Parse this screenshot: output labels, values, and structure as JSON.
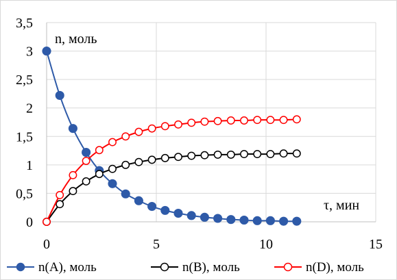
{
  "chart_data": {
    "type": "line",
    "x": [
      0,
      0.6,
      1.2,
      1.8,
      2.4,
      3.0,
      3.6,
      4.2,
      4.8,
      5.4,
      6.0,
      6.6,
      7.2,
      7.8,
      8.4,
      9.0,
      9.6,
      10.2,
      10.8,
      11.4
    ],
    "series": [
      {
        "name": "n(A), моль",
        "color": "#2e5aa8",
        "marker": "filled-circle",
        "values": [
          3.0,
          2.22,
          1.64,
          1.22,
          0.9,
          0.67,
          0.49,
          0.37,
          0.27,
          0.2,
          0.15,
          0.11,
          0.08,
          0.06,
          0.04,
          0.03,
          0.02,
          0.02,
          0.01,
          0.01
        ]
      },
      {
        "name": "n(B), моль",
        "color": "#000000",
        "marker": "open-circle",
        "values": [
          0.0,
          0.31,
          0.54,
          0.71,
          0.84,
          0.93,
          1.0,
          1.05,
          1.09,
          1.12,
          1.14,
          1.16,
          1.17,
          1.18,
          1.18,
          1.19,
          1.19,
          1.19,
          1.2,
          1.2
        ]
      },
      {
        "name": "n(D), моль",
        "color": "#ff0000",
        "marker": "open-circle",
        "values": [
          0.0,
          0.47,
          0.82,
          1.07,
          1.26,
          1.4,
          1.5,
          1.58,
          1.64,
          1.68,
          1.71,
          1.74,
          1.76,
          1.77,
          1.78,
          1.78,
          1.79,
          1.79,
          1.79,
          1.8
        ]
      }
    ],
    "xlim": [
      0,
      15
    ],
    "ylim": [
      0,
      3.5
    ],
    "x_ticks": [
      "0",
      "5",
      "10",
      "15"
    ],
    "y_ticks": [
      "0",
      "0,5",
      "1",
      "1,5",
      "2",
      "2,5",
      "3",
      "3,5"
    ],
    "ylabel": "n, моль",
    "xlabel": "τ, мин",
    "grid": true,
    "legend_position": "bottom"
  }
}
